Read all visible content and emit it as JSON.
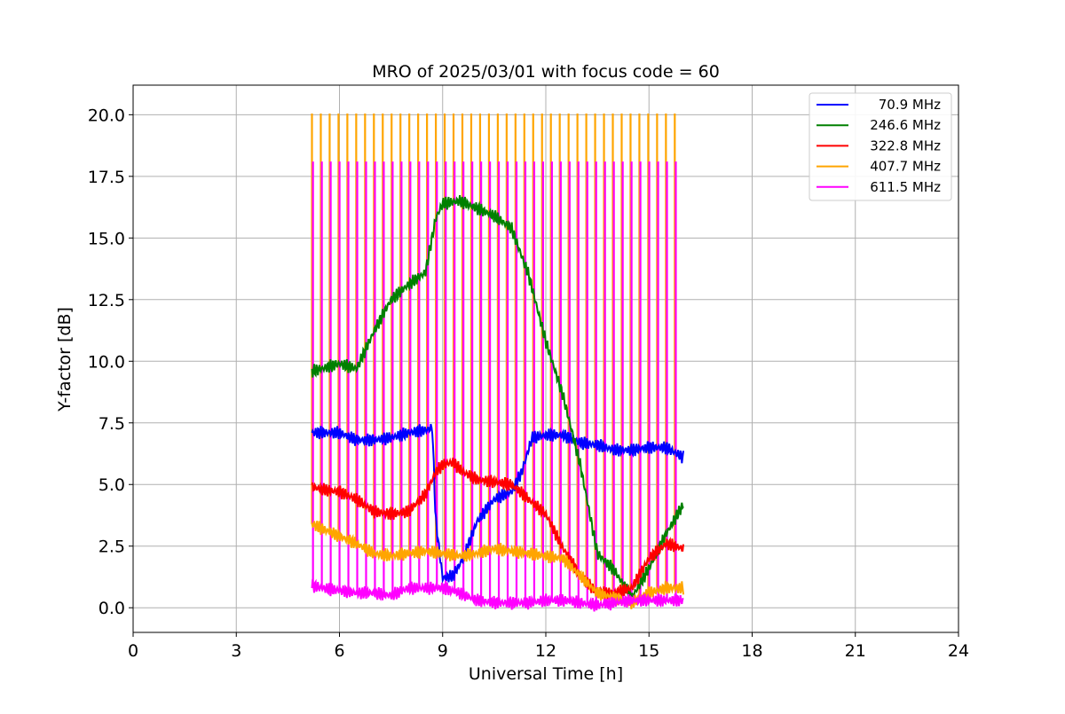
{
  "chart_data": {
    "type": "line",
    "title": "MRO of 2025/03/01 with focus code = 60",
    "xlabel": "Universal Time [h]",
    "ylabel": "Y-factor [dB]",
    "xlim": [
      0,
      24
    ],
    "ylim": [
      -1.0,
      21.2
    ],
    "x_ticks": [
      0,
      3,
      6,
      9,
      12,
      15,
      18,
      21,
      24
    ],
    "x_tick_labels": [
      "0",
      "3",
      "6",
      "9",
      "12",
      "15",
      "18",
      "21",
      "24"
    ],
    "y_ticks": [
      0,
      2.5,
      5,
      7.5,
      10,
      12.5,
      15,
      17.5,
      20
    ],
    "y_tick_labels": [
      "0.0",
      "2.5",
      "5.0",
      "7.5",
      "10.0",
      "12.5",
      "15.0",
      "17.5",
      "20.0"
    ],
    "grid": true,
    "legend_position": "top-right",
    "calibration_pulses": {
      "x_start": 5.2,
      "x_end": 15.75,
      "count": 42,
      "series_peaks": [
        {
          "series": "407.7 MHz",
          "peak": 20.05
        },
        {
          "series": "611.5 MHz",
          "peak": 18.1
        }
      ]
    },
    "series": [
      {
        "name": "70.9 MHz",
        "color": "#0000ff",
        "x": [
          5.2,
          5.5,
          6.0,
          6.5,
          7.0,
          7.5,
          8.0,
          8.5,
          8.7,
          8.8,
          9.0,
          9.3,
          9.6,
          10.0,
          10.5,
          11.0,
          11.3,
          11.6,
          12.0,
          12.5,
          13.0,
          13.5,
          14.0,
          14.5,
          15.0,
          15.5,
          16.0
        ],
        "y": [
          7.1,
          7.1,
          7.1,
          6.8,
          6.8,
          6.9,
          7.1,
          7.2,
          7.3,
          3.5,
          1.2,
          1.3,
          2.0,
          3.5,
          4.4,
          4.7,
          5.5,
          6.9,
          7.0,
          7.0,
          6.7,
          6.6,
          6.4,
          6.4,
          6.5,
          6.5,
          6.1
        ]
      },
      {
        "name": "246.6 MHz",
        "color": "#008000",
        "x": [
          5.2,
          5.5,
          6.0,
          6.5,
          7.0,
          7.5,
          8.0,
          8.5,
          8.8,
          9.0,
          9.5,
          10.0,
          10.5,
          11.0,
          11.5,
          12.0,
          12.5,
          13.0,
          13.5,
          14.0,
          14.5,
          15.0,
          15.5,
          16.0
        ],
        "y": [
          9.6,
          9.7,
          9.9,
          9.7,
          11.2,
          12.5,
          13.1,
          13.6,
          15.8,
          16.4,
          16.5,
          16.2,
          15.9,
          15.4,
          13.5,
          10.8,
          8.6,
          5.8,
          2.2,
          1.5,
          0.4,
          1.6,
          3.0,
          4.2
        ]
      },
      {
        "name": "322.8 MHz",
        "color": "#ff0000",
        "x": [
          5.2,
          5.5,
          6.0,
          6.5,
          7.0,
          7.5,
          8.0,
          8.5,
          8.8,
          9.0,
          9.3,
          9.6,
          10.0,
          10.5,
          11.0,
          11.5,
          12.0,
          12.5,
          13.0,
          13.5,
          14.0,
          14.5,
          15.0,
          15.5,
          16.0
        ],
        "y": [
          4.9,
          4.8,
          4.7,
          4.4,
          3.9,
          3.8,
          3.9,
          4.6,
          5.5,
          5.8,
          5.9,
          5.5,
          5.2,
          5.1,
          5.0,
          4.4,
          3.8,
          2.4,
          1.3,
          0.6,
          0.6,
          0.8,
          2.0,
          2.6,
          2.4
        ]
      },
      {
        "name": "407.7 MHz",
        "color": "#ffa500",
        "x": [
          5.2,
          5.5,
          6.0,
          6.5,
          7.0,
          7.5,
          8.0,
          8.5,
          9.0,
          9.5,
          10.0,
          10.5,
          11.0,
          11.5,
          12.0,
          12.5,
          13.0,
          13.5,
          14.0,
          14.5,
          15.0,
          15.5,
          16.0
        ],
        "y": [
          3.4,
          3.2,
          2.9,
          2.6,
          2.2,
          2.1,
          2.2,
          2.3,
          2.2,
          2.1,
          2.2,
          2.4,
          2.3,
          2.2,
          2.1,
          2.0,
          1.3,
          0.6,
          0.4,
          0.2,
          0.6,
          0.8,
          0.8
        ]
      },
      {
        "name": "611.5 MHz",
        "color": "#ff00ff",
        "x": [
          5.2,
          5.5,
          6.0,
          6.5,
          7.0,
          7.5,
          8.0,
          8.5,
          9.0,
          9.5,
          10.0,
          10.5,
          11.0,
          11.5,
          12.0,
          12.5,
          13.0,
          13.5,
          14.0,
          14.5,
          15.0,
          15.5,
          16.0
        ],
        "y": [
          0.9,
          0.8,
          0.7,
          0.6,
          0.6,
          0.5,
          0.8,
          0.8,
          0.8,
          0.6,
          0.3,
          0.2,
          0.2,
          0.2,
          0.3,
          0.3,
          0.2,
          0.1,
          0.2,
          0.3,
          0.3,
          0.3,
          0.3
        ]
      }
    ]
  }
}
